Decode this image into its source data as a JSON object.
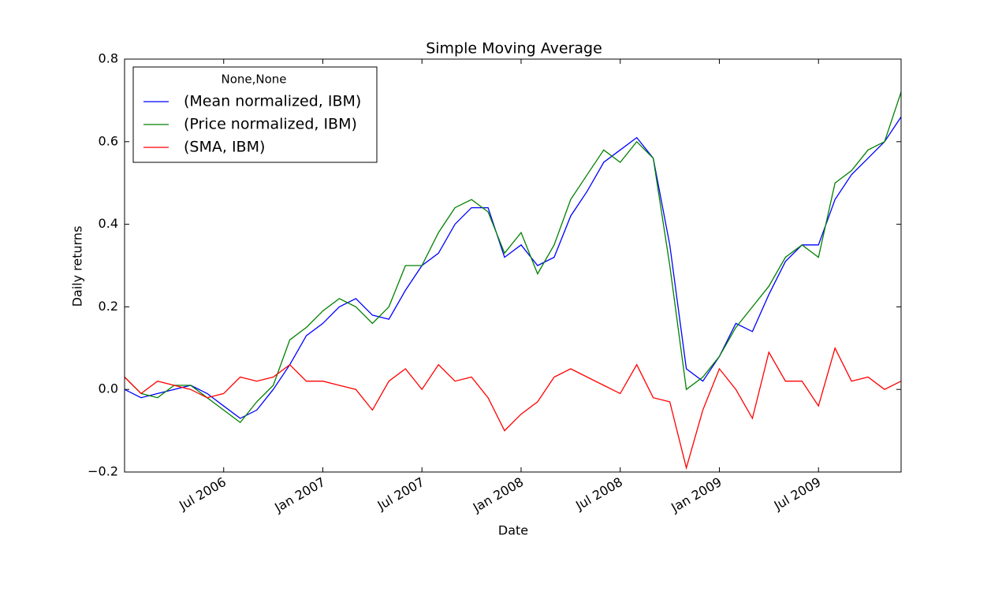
{
  "chart_data": {
    "type": "line",
    "title": "Simple Moving Average",
    "xlabel": "Date",
    "ylabel": "Daily returns",
    "legend_title": "None,None",
    "legend_loc": "upper left",
    "grid": false,
    "x": [
      "2006-01",
      "2006-02",
      "2006-03",
      "2006-04",
      "2006-05",
      "2006-06",
      "2006-07",
      "2006-08",
      "2006-09",
      "2006-10",
      "2006-11",
      "2006-12",
      "2007-01",
      "2007-02",
      "2007-03",
      "2007-04",
      "2007-05",
      "2007-06",
      "2007-07",
      "2007-08",
      "2007-09",
      "2007-10",
      "2007-11",
      "2007-12",
      "2008-01",
      "2008-02",
      "2008-03",
      "2008-04",
      "2008-05",
      "2008-06",
      "2008-07",
      "2008-08",
      "2008-09",
      "2008-10",
      "2008-11",
      "2008-12",
      "2009-01",
      "2009-02",
      "2009-03",
      "2009-04",
      "2009-05",
      "2009-06",
      "2009-07",
      "2009-08",
      "2009-09",
      "2009-10",
      "2009-11",
      "2009-12"
    ],
    "series": [
      {
        "name": "(Mean normalized, IBM)",
        "color": "#0000ff",
        "values": [
          0.0,
          -0.02,
          -0.01,
          0.0,
          0.01,
          -0.01,
          -0.04,
          -0.07,
          -0.05,
          0.0,
          0.06,
          0.13,
          0.16,
          0.2,
          0.22,
          0.18,
          0.17,
          0.24,
          0.3,
          0.33,
          0.4,
          0.44,
          0.44,
          0.32,
          0.35,
          0.3,
          0.32,
          0.42,
          0.48,
          0.55,
          0.58,
          0.61,
          0.56,
          0.35,
          0.05,
          0.02,
          0.08,
          0.16,
          0.14,
          0.23,
          0.31,
          0.35,
          0.35,
          0.46,
          0.52,
          0.56,
          0.6,
          0.66
        ]
      },
      {
        "name": "(Price normalized, IBM)",
        "color": "#008000",
        "values": [
          0.03,
          -0.01,
          -0.02,
          0.01,
          0.01,
          -0.02,
          -0.05,
          -0.08,
          -0.03,
          0.01,
          0.12,
          0.15,
          0.19,
          0.22,
          0.2,
          0.16,
          0.2,
          0.3,
          0.3,
          0.38,
          0.44,
          0.46,
          0.43,
          0.33,
          0.38,
          0.28,
          0.35,
          0.46,
          0.52,
          0.58,
          0.55,
          0.6,
          0.56,
          0.3,
          0.0,
          0.03,
          0.08,
          0.15,
          0.2,
          0.25,
          0.32,
          0.35,
          0.32,
          0.5,
          0.53,
          0.58,
          0.6,
          0.72
        ]
      },
      {
        "name": "(SMA, IBM)",
        "color": "#ff0000",
        "values": [
          0.03,
          -0.01,
          0.02,
          0.01,
          0.0,
          -0.02,
          -0.01,
          0.03,
          0.02,
          0.03,
          0.06,
          0.02,
          0.02,
          0.01,
          0.0,
          -0.05,
          0.02,
          0.05,
          0.0,
          0.06,
          0.02,
          0.03,
          -0.02,
          -0.1,
          -0.06,
          -0.03,
          0.03,
          0.05,
          0.03,
          0.01,
          -0.01,
          0.06,
          -0.02,
          -0.03,
          -0.19,
          -0.05,
          0.05,
          0.0,
          -0.07,
          0.09,
          0.02,
          0.02,
          -0.04,
          0.1,
          0.02,
          0.03,
          0.0,
          0.02
        ]
      }
    ],
    "xlim": [
      "2006-01",
      "2009-12"
    ],
    "xticks": [
      {
        "value": "2006-07",
        "label": "Jul 2006"
      },
      {
        "value": "2007-01",
        "label": "Jan 2007"
      },
      {
        "value": "2007-07",
        "label": "Jul 2007"
      },
      {
        "value": "2008-01",
        "label": "Jan 2008"
      },
      {
        "value": "2008-07",
        "label": "Jul 2008"
      },
      {
        "value": "2009-01",
        "label": "Jan 2009"
      },
      {
        "value": "2009-07",
        "label": "Jul 2009"
      }
    ],
    "ylim": [
      -0.2,
      0.8
    ],
    "yticks": [
      {
        "value": -0.2,
        "label": "−0.2"
      },
      {
        "value": 0.0,
        "label": "0.0"
      },
      0.2,
      0.4,
      0.6,
      0.8
    ]
  }
}
